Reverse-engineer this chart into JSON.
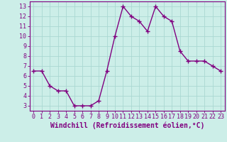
{
  "x": [
    0,
    1,
    2,
    3,
    4,
    5,
    6,
    7,
    8,
    9,
    10,
    11,
    12,
    13,
    14,
    15,
    16,
    17,
    18,
    19,
    20,
    21,
    22,
    23
  ],
  "y": [
    6.5,
    6.5,
    5.0,
    4.5,
    4.5,
    3.0,
    3.0,
    3.0,
    3.5,
    6.5,
    10.0,
    13.0,
    12.0,
    11.5,
    10.5,
    13.0,
    12.0,
    11.5,
    8.5,
    7.5,
    7.5,
    7.5,
    7.0,
    6.5
  ],
  "line_color": "#800080",
  "marker": "+",
  "marker_size": 4,
  "bg_color": "#cceee8",
  "grid_color": "#aad8d2",
  "axis_color": "#800080",
  "tick_color": "#800080",
  "xlabel": "Windchill (Refroidissement éolien,°C)",
  "xlabel_fontsize": 7,
  "ylim": [
    2.5,
    13.5
  ],
  "xlim": [
    -0.5,
    23.5
  ],
  "yticks": [
    3,
    4,
    5,
    6,
    7,
    8,
    9,
    10,
    11,
    12,
    13
  ],
  "xticks": [
    0,
    1,
    2,
    3,
    4,
    5,
    6,
    7,
    8,
    9,
    10,
    11,
    12,
    13,
    14,
    15,
    16,
    17,
    18,
    19,
    20,
    21,
    22,
    23
  ],
  "tick_fontsize": 6,
  "line_width": 1.0
}
